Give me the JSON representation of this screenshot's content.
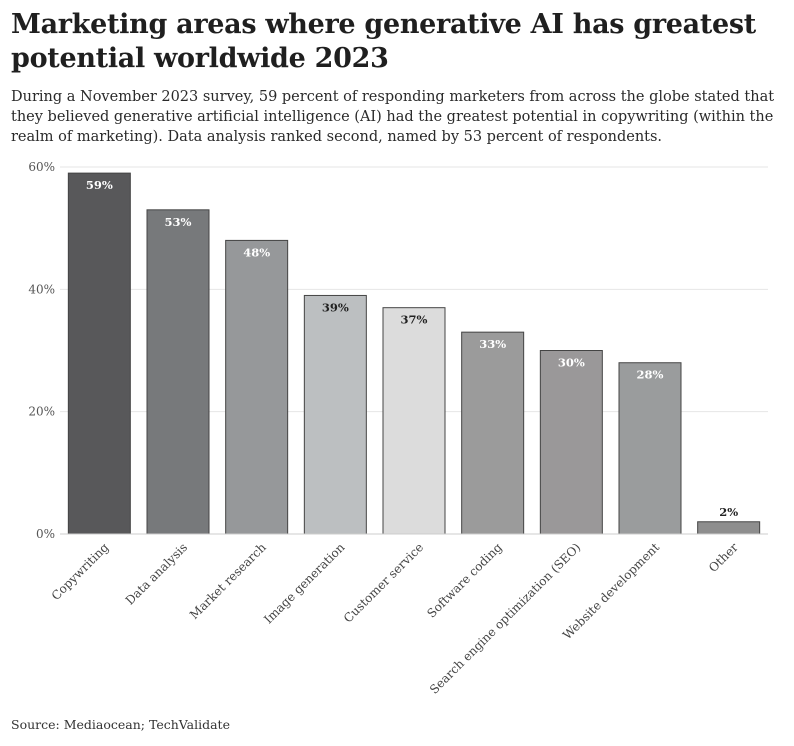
{
  "header": {
    "title": "Marketing areas where generative AI has greatest potential worldwide 2023",
    "subtitle": "During a November 2023 survey, 59 percent of responding marketers from across the globe stated that they believed generative artificial intelligence (AI) had the greatest potential in copywriting (within the realm of marketing). Data analysis ranked second, named by 53 percent of respondents."
  },
  "footer": {
    "source": "Source: Mediaocean; TechValidate"
  },
  "chart_data": {
    "type": "bar",
    "title": "Marketing areas where generative AI has greatest potential worldwide 2023",
    "xlabel": "",
    "ylabel": "",
    "ylim": [
      0,
      60
    ],
    "yticks": [
      0,
      20,
      40,
      60
    ],
    "ytick_labels": [
      "0%",
      "20%",
      "40%",
      "60%"
    ],
    "grid": true,
    "categories": [
      "Copywriting",
      "Data analysis",
      "Market research",
      "Image generation",
      "Customer service",
      "Software coding",
      "Search engine optimization (SEO)",
      "Website development",
      "Other"
    ],
    "values": [
      59,
      53,
      48,
      39,
      37,
      33,
      30,
      28,
      2
    ],
    "data_labels": [
      "59%",
      "53%",
      "48%",
      "39%",
      "37%",
      "33%",
      "30%",
      "28%",
      "2%"
    ],
    "colors": {
      "bars": [
        "#58585a",
        "#77797b",
        "#96989a",
        "#bcbfc1",
        "#dcdcdc",
        "#9b9b9b",
        "#9a9899",
        "#9a9c9d",
        "#8e8e8e"
      ],
      "bar_stroke": "#444444",
      "grid": "#e6e6e6",
      "label_light": "#ffffff",
      "label_dark": "#222222"
    }
  }
}
